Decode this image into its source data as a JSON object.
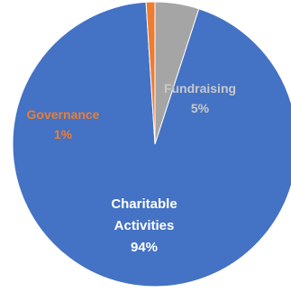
{
  "chart_data": {
    "type": "pie",
    "title": "",
    "slices": [
      {
        "name": "Charitable Activities",
        "label_lines": [
          "Charitable",
          "Activities"
        ],
        "value": 94,
        "value_label": "94%",
        "color": "#4472C4",
        "label_color": "#ffffff"
      },
      {
        "name": "Governance",
        "label_lines": [
          "Governance"
        ],
        "value": 1,
        "value_label": "1%",
        "color": "#ED7D31",
        "label_color": "#ED7D31"
      },
      {
        "name": "Fundraising",
        "label_lines": [
          "Fundraising"
        ],
        "value": 5,
        "value_label": "5%",
        "color": "#A5A5A5",
        "label_color": "#C9C9C9"
      }
    ],
    "legend": "none",
    "start_angle_deg": 0,
    "direction": "clockwise",
    "slice_order_clockwise_from_top": [
      "Charitable Activities",
      "Governance",
      "Fundraising"
    ]
  }
}
